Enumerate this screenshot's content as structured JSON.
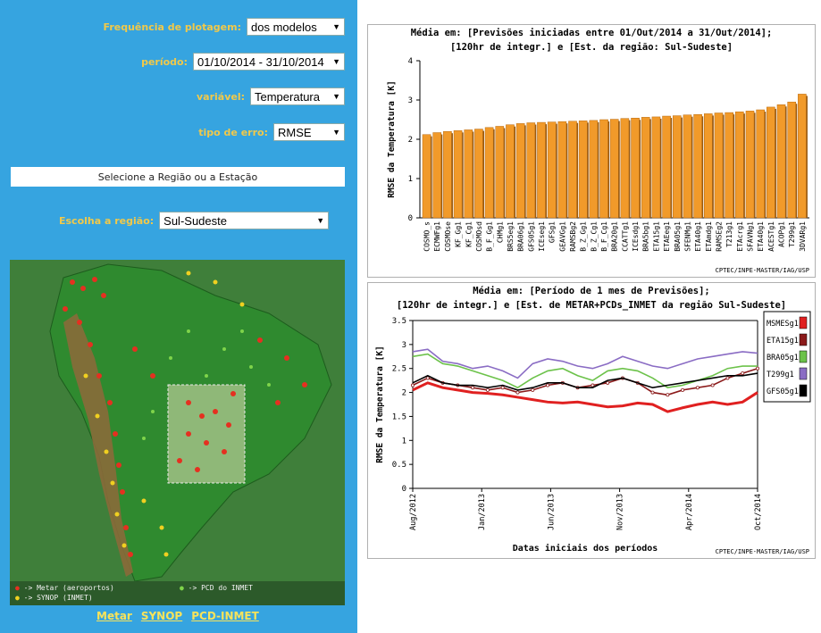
{
  "controls": {
    "frequency": {
      "label": "Frequência de plotagem:",
      "value": "dos modelos"
    },
    "period": {
      "label": "período:",
      "value": "01/10/2014 - 31/10/2014"
    },
    "variable": {
      "label": "variável:",
      "value": "Temperatura"
    },
    "error_type": {
      "label": "tipo de erro:",
      "value": "RMSE"
    }
  },
  "region": {
    "title": "Selecione a Região ou a Estação",
    "choose_label": "Escolha a região:",
    "choose_value": "Sul-Sudeste"
  },
  "map_legend": {
    "metar": "-> Metar (aeroportos)",
    "pcd": "-> PCD do INMET",
    "synop": "-> SYNOP (INMET)"
  },
  "links": [
    "Metar",
    "SYNOP",
    "PCD-INMET"
  ],
  "colors": {
    "panel": "#36a4e0",
    "label": "#f1c94a",
    "link": "#f8e35a",
    "bar": "#f19a2a"
  },
  "chart_data": [
    {
      "type": "bar",
      "title": "Média em: [Previsões iniciadas entre 01/Out/2014 a 31/Out/2014];",
      "subtitle": "[120hr de integr.] e [Est. da região: Sul-Sudeste]",
      "ylabel": "RMSE da Temperatura [K]",
      "xlabel": "",
      "ylim": [
        0,
        4
      ],
      "yticks": [
        0,
        1,
        2,
        3,
        4
      ],
      "credit": "CPTEC/INPE-MASTER/IAG/USP",
      "categories": [
        "COSMO_s",
        "ECMWFg1",
        "COSMOse",
        "KF_Gg1",
        "KF_Cg1",
        "COSMOsd",
        "B_F_Gg1",
        "CHMg1",
        "BRS5eg1",
        "BRA06g1",
        "GFS05g1",
        "ICEseg1",
        "GFSg1",
        "GEAVGg1",
        "RAMSBg2",
        "B_Z_Gg1",
        "B_Z_Cg1",
        "B_F_Cg1",
        "BRA20g1",
        "CCATTg1",
        "ICEsdg1",
        "BRA5bg1",
        "ETA15g1",
        "ETAEeg1",
        "BRA05g1",
        "SFENMg1",
        "ETA40g1",
        "ETAmdg1",
        "RAMSEg2",
        "T213g1",
        "ETAcrg1",
        "SFAVNg1",
        "ETA40g1",
        "ACESTg1",
        "ACOPg1",
        "T299g1",
        "3DVARg1"
      ],
      "values": [
        2.12,
        2.17,
        2.2,
        2.22,
        2.24,
        2.26,
        2.3,
        2.33,
        2.37,
        2.4,
        2.42,
        2.43,
        2.44,
        2.45,
        2.46,
        2.47,
        2.48,
        2.5,
        2.51,
        2.53,
        2.54,
        2.56,
        2.57,
        2.59,
        2.6,
        2.62,
        2.63,
        2.65,
        2.67,
        2.68,
        2.7,
        2.72,
        2.75,
        2.82,
        2.88,
        2.95,
        3.15
      ]
    },
    {
      "type": "line",
      "title": "Média em: [Período de 1 mes de Previsões];",
      "subtitle": "[120hr de integr.] e [Est. de METAR+PCDs_INMET da região Sul-Sudeste]",
      "ylabel": "RMSE da Temperatura [K]",
      "xlabel": "Datas iniciais dos períodos",
      "ylim": [
        0,
        3.5
      ],
      "yticks": [
        0,
        0.5,
        1,
        1.5,
        2,
        2.5,
        3,
        3.5
      ],
      "xticks": [
        "Aug/2012",
        "Jan/2013",
        "Jun/2013",
        "Nov/2013",
        "Apr/2014",
        "Oct/2014"
      ],
      "credit": "CPTEC/INPE-MASTER/IAG/USP",
      "series": [
        {
          "name": "MSMESg1",
          "color": "#e02020",
          "values": [
            2.05,
            2.2,
            2.1,
            2.05,
            2.0,
            1.98,
            1.95,
            1.9,
            1.85,
            1.8,
            1.78,
            1.8,
            1.75,
            1.7,
            1.72,
            1.78,
            1.75,
            1.6,
            1.68,
            1.75,
            1.8,
            1.75,
            1.8,
            2.0
          ]
        },
        {
          "name": "ETA15g1",
          "color": "#8b1a1a",
          "values": [
            2.15,
            2.3,
            2.2,
            2.15,
            2.1,
            2.05,
            2.1,
            2.0,
            2.05,
            2.15,
            2.2,
            2.1,
            2.15,
            2.2,
            2.3,
            2.2,
            2.0,
            1.95,
            2.05,
            2.1,
            2.15,
            2.3,
            2.4,
            2.5
          ]
        },
        {
          "name": "BRA05g1",
          "color": "#6cc24a",
          "values": [
            2.75,
            2.8,
            2.6,
            2.55,
            2.45,
            2.35,
            2.25,
            2.1,
            2.3,
            2.45,
            2.5,
            2.35,
            2.25,
            2.45,
            2.5,
            2.45,
            2.3,
            2.1,
            2.15,
            2.25,
            2.35,
            2.5,
            2.55,
            2.55
          ]
        },
        {
          "name": "T299g1",
          "color": "#8a6cc4",
          "values": [
            2.85,
            2.9,
            2.65,
            2.6,
            2.5,
            2.55,
            2.45,
            2.3,
            2.6,
            2.7,
            2.65,
            2.55,
            2.5,
            2.6,
            2.75,
            2.65,
            2.55,
            2.5,
            2.6,
            2.7,
            2.75,
            2.8,
            2.85,
            2.82
          ]
        },
        {
          "name": "GFS05g1",
          "color": "#000000",
          "values": [
            2.2,
            2.35,
            2.2,
            2.15,
            2.15,
            2.1,
            2.15,
            2.05,
            2.1,
            2.2,
            2.2,
            2.1,
            2.1,
            2.25,
            2.3,
            2.2,
            2.1,
            2.15,
            2.2,
            2.25,
            2.3,
            2.35,
            2.35,
            2.4
          ]
        }
      ]
    }
  ]
}
